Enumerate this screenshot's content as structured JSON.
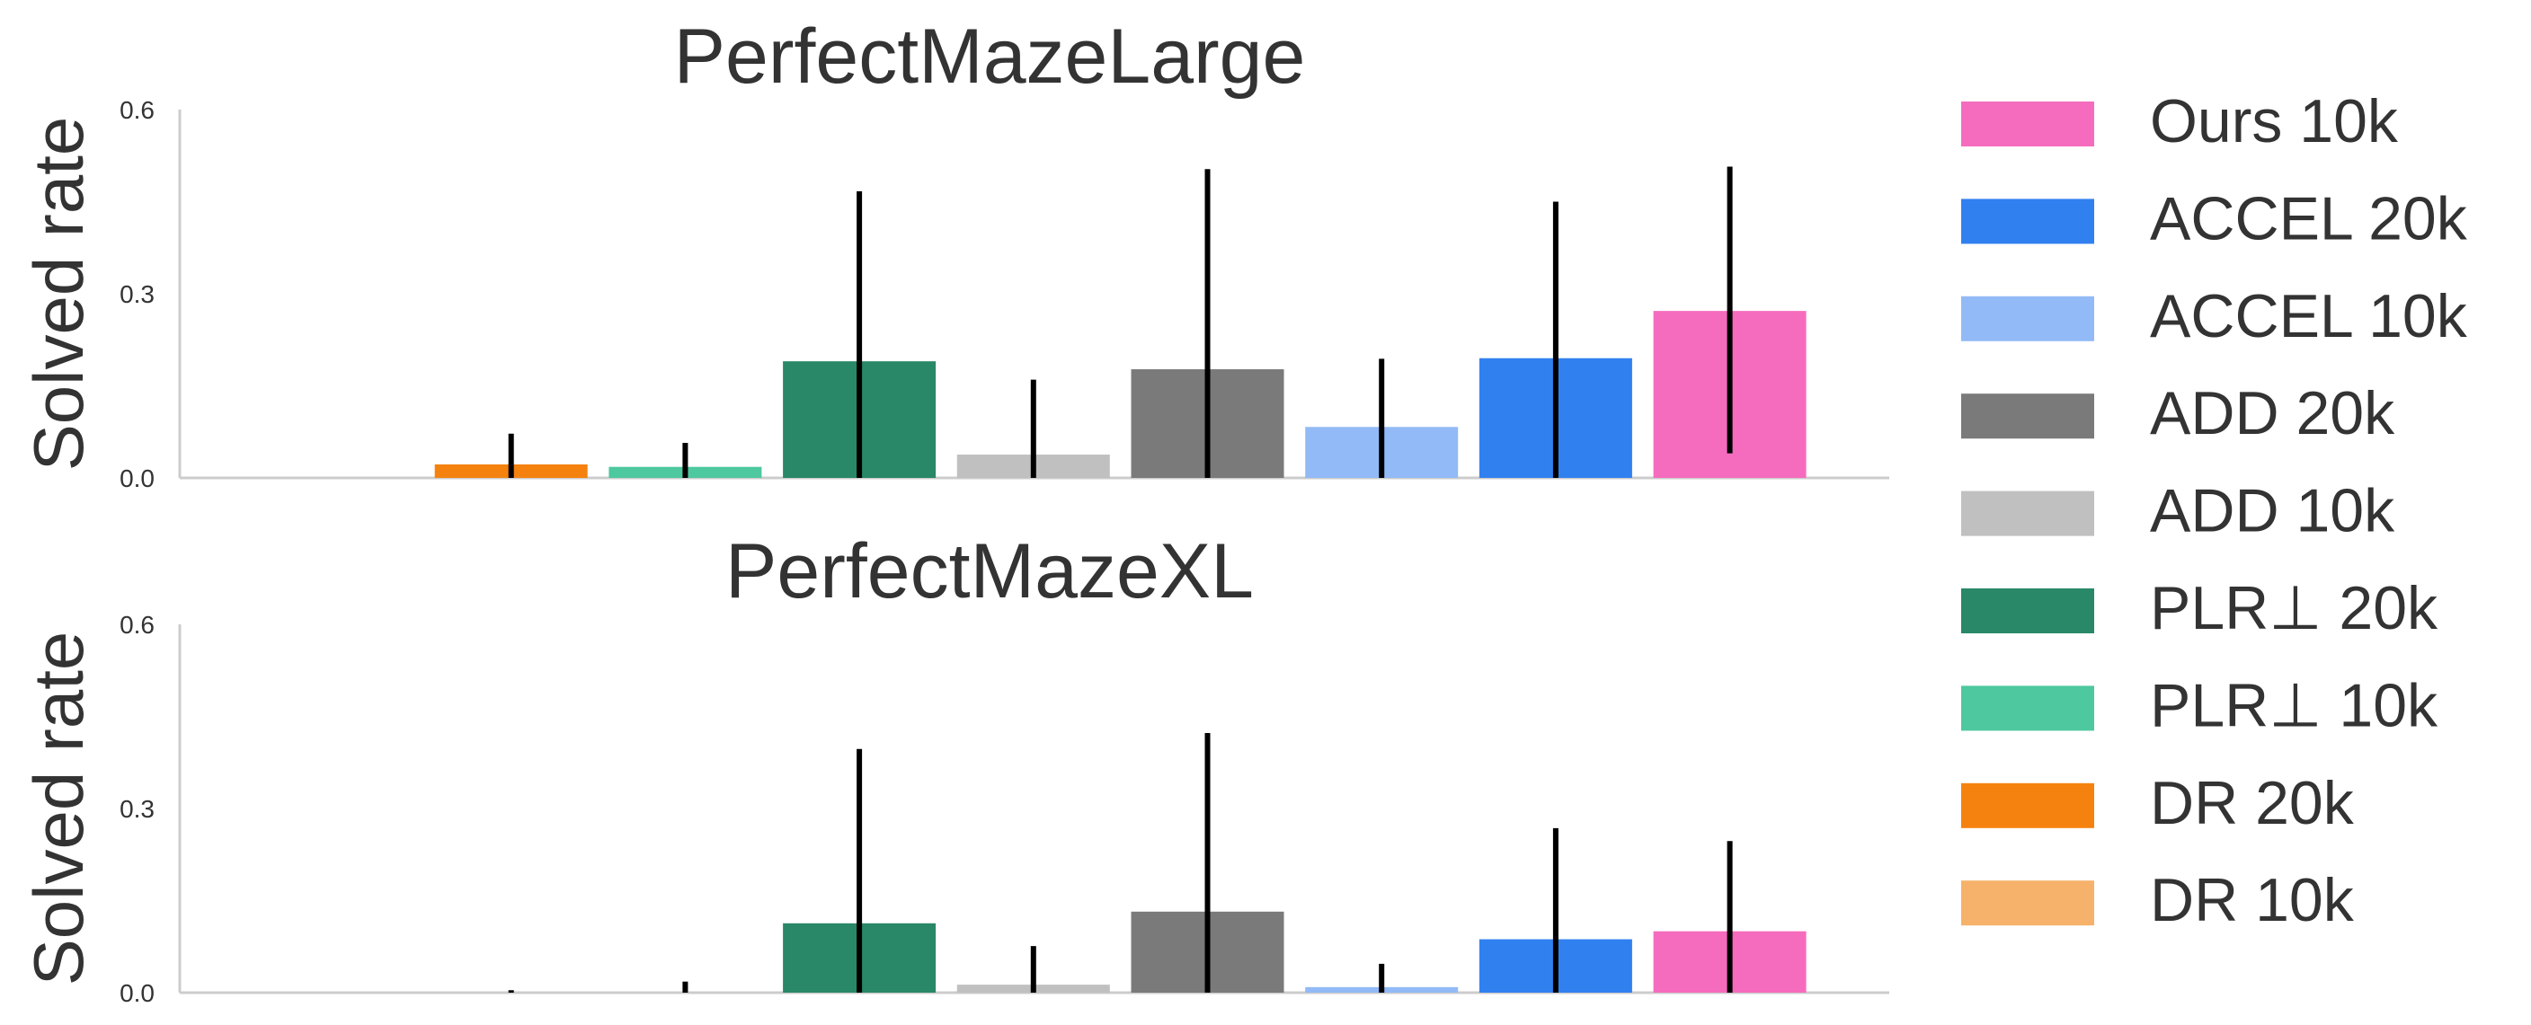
{
  "chart_data": [
    {
      "type": "bar",
      "title": "PerfectMazeLarge",
      "xlabel": "",
      "ylabel": "Solved rate",
      "ylim": [
        0,
        0.6
      ],
      "yticks": [
        "0.0",
        "0.3",
        "0.6"
      ],
      "grid": false,
      "categories": [
        "DR 10k",
        "DR 20k",
        "PLR⊥ 10k",
        "PLR⊥ 20k",
        "ADD 10k",
        "ADD 20k",
        "ACCEL 10k",
        "ACCEL 20k",
        "Ours 10k"
      ],
      "values": [
        0.0,
        0.022,
        0.018,
        0.19,
        0.038,
        0.177,
        0.083,
        0.195,
        0.272
      ],
      "error_low": [
        0.0,
        0.0,
        0.0,
        0.0,
        0.0,
        0.0,
        0.0,
        0.0,
        0.04
      ],
      "error_high": [
        0.0,
        0.072,
        0.057,
        0.467,
        0.16,
        0.503,
        0.194,
        0.45,
        0.507
      ]
    },
    {
      "type": "bar",
      "title": "PerfectMazeXL",
      "xlabel": "",
      "ylabel": "Solved rate",
      "ylim": [
        0,
        0.6
      ],
      "yticks": [
        "0.0",
        "0.3",
        "0.6"
      ],
      "grid": false,
      "categories": [
        "DR 10k",
        "DR 20k",
        "PLR⊥ 10k",
        "PLR⊥ 20k",
        "ADD 10k",
        "ADD 20k",
        "ACCEL 10k",
        "ACCEL 20k",
        "Ours 10k"
      ],
      "values": [
        0.0,
        0.0,
        0.0,
        0.113,
        0.013,
        0.132,
        0.009,
        0.087,
        0.1
      ],
      "error_low": [
        0.0,
        0.0,
        0.0,
        0.0,
        0.0,
        0.0,
        0.0,
        0.0,
        0.0
      ],
      "error_high": [
        0.0,
        0.004,
        0.018,
        0.397,
        0.076,
        0.423,
        0.047,
        0.268,
        0.247
      ]
    }
  ],
  "legend": {
    "placement": "right",
    "entries": [
      {
        "label": "Ours 10k",
        "color": "#f56cbe"
      },
      {
        "label": "ACCEL 20k",
        "color": "#3180f0"
      },
      {
        "label": "ACCEL 10k",
        "color": "#92baf6"
      },
      {
        "label": "ADD 20k",
        "color": "#7a7a7a"
      },
      {
        "label": "ADD 10k",
        "color": "#c0c0c0"
      },
      {
        "label": "PLR⊥ 20k",
        "color": "#288868"
      },
      {
        "label": "PLR⊥ 10k",
        "color": "#4ec89e"
      },
      {
        "label": "DR 20k",
        "color": "#f5820f"
      },
      {
        "label": "DR 10k",
        "color": "#f6b26b"
      }
    ]
  },
  "series_colors": [
    "#f6b26b",
    "#f5820f",
    "#4ec89e",
    "#288868",
    "#c0c0c0",
    "#7a7a7a",
    "#92baf6",
    "#3180f0",
    "#f56cbe"
  ]
}
